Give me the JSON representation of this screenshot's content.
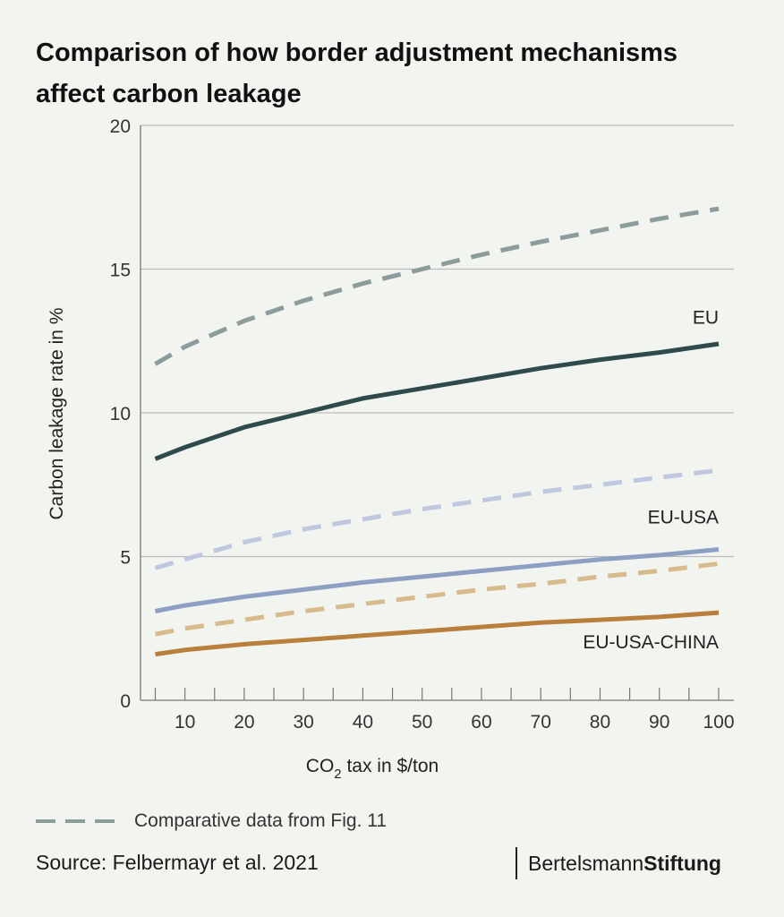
{
  "title_line1": "Comparison of how border adjustment mechanisms",
  "title_line2": "affect carbon leakage",
  "chart_data": {
    "type": "line",
    "title": "Comparison of how border adjustment mechanisms affect carbon leakage",
    "xlabel_main": "CO",
    "xlabel_sub": "2",
    "xlabel_rest": " tax in $/ton",
    "ylabel": "Carbon leakage rate in %",
    "xlim": [
      0,
      100
    ],
    "ylim": [
      0,
      20
    ],
    "x_ticks": [
      10,
      20,
      30,
      40,
      50,
      60,
      70,
      80,
      90,
      100
    ],
    "y_ticks": [
      0,
      5,
      10,
      15,
      20
    ],
    "grid": "horizontal",
    "x": [
      5,
      10,
      20,
      30,
      40,
      50,
      60,
      70,
      80,
      90,
      100
    ],
    "series": [
      {
        "name": "EU",
        "style": "solid",
        "color": "#2f4a4c",
        "label_at": [
          100,
          13.1
        ],
        "values": [
          8.4,
          8.8,
          9.5,
          10.0,
          10.5,
          10.85,
          11.2,
          11.55,
          11.85,
          12.1,
          12.4
        ]
      },
      {
        "name": "",
        "style": "dashed",
        "color": "#8c9c9c",
        "values": [
          11.7,
          12.3,
          13.2,
          13.9,
          14.5,
          15.0,
          15.5,
          15.95,
          16.35,
          16.75,
          17.1
        ]
      },
      {
        "name": "EU-USA",
        "style": "solid",
        "color": "#8e9fc4",
        "label_at": [
          100,
          6.15
        ],
        "values": [
          3.1,
          3.3,
          3.6,
          3.85,
          4.1,
          4.3,
          4.5,
          4.7,
          4.9,
          5.05,
          5.25
        ]
      },
      {
        "name": "",
        "style": "dashed",
        "color": "#c0c8e0",
        "values": [
          4.6,
          4.9,
          5.5,
          5.95,
          6.3,
          6.65,
          6.95,
          7.25,
          7.5,
          7.75,
          8.0
        ]
      },
      {
        "name": "EU-USA-CHINA",
        "style": "solid",
        "color": "#b97f3c",
        "label_at": [
          100,
          1.8
        ],
        "values": [
          1.6,
          1.75,
          1.95,
          2.1,
          2.25,
          2.4,
          2.55,
          2.7,
          2.8,
          2.9,
          3.05
        ]
      },
      {
        "name": "",
        "style": "dashed",
        "color": "#d7bb8c",
        "values": [
          2.3,
          2.5,
          2.8,
          3.1,
          3.35,
          3.6,
          3.85,
          4.05,
          4.3,
          4.5,
          4.75
        ]
      }
    ]
  },
  "legend": {
    "dashed_label": "Comparative data from Fig. 11"
  },
  "source": "Source: Felbermayr et al. 2021",
  "brand": {
    "light": "Bertelsmann",
    "bold": "Stiftung"
  }
}
